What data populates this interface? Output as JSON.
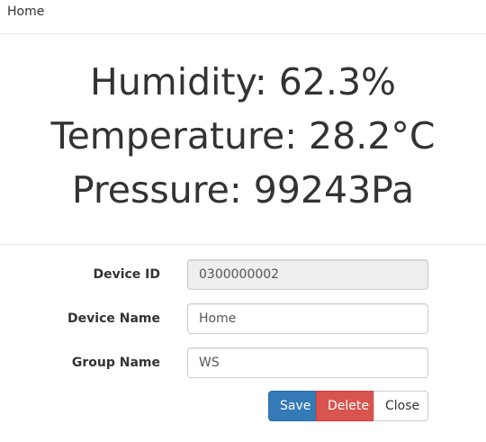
{
  "header": {
    "title": "Home"
  },
  "readings": {
    "humidity": "Humidity: 62.3%",
    "temperature": "Temperature: 28.2°C",
    "pressure": "Pressure: 99243Pa"
  },
  "form": {
    "device_id": {
      "label": "Device ID",
      "value": "0300000002"
    },
    "device_name": {
      "label": "Device Name",
      "value": "Home"
    },
    "group_name": {
      "label": "Group Name",
      "value": "WS"
    }
  },
  "buttons": {
    "save": "Save",
    "delete": "Delete",
    "close": "Close"
  },
  "colors": {
    "primary": "#337ab7",
    "danger": "#d9534f",
    "default": "#ffffff"
  }
}
